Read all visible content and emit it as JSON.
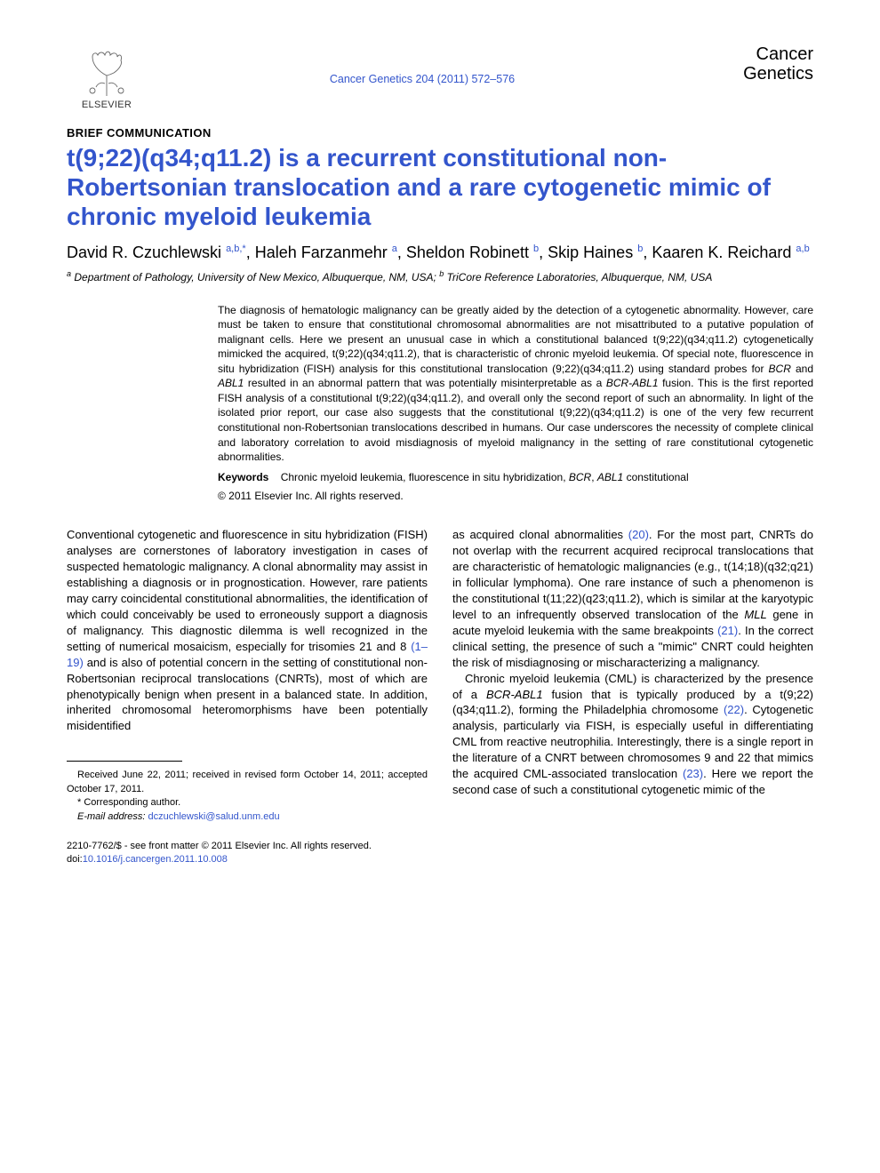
{
  "header": {
    "publisher_label": "ELSEVIER",
    "journal_ref": "Cancer Genetics 204 (2011) 572–576",
    "journal_title_line1": "Cancer",
    "journal_title_line2": "Genetics"
  },
  "article": {
    "section_label": "BRIEF COMMUNICATION",
    "title": "t(9;22)(q34;q11.2) is a recurrent constitutional non-Robertsonian translocation and a rare cytogenetic mimic of chronic myeloid leukemia",
    "authors_html": "David R. Czuchlewski <sup>a,b,*</sup>, Haleh Farzanmehr <sup>a</sup>, Sheldon Robinett <sup>b</sup>, Skip Haines <sup>b</sup>, Kaaren K. Reichard <sup>a,b</sup>",
    "affiliations_html": "<sup>a</sup> Department of Pathology, University of New Mexico, Albuquerque, NM, USA; <sup>b</sup> TriCore Reference Laboratories, Albuquerque, NM, USA"
  },
  "abstract": {
    "text_html": "The diagnosis of hematologic malignancy can be greatly aided by the detection of a cytogenetic abnormality. However, care must be taken to ensure that constitutional chromosomal abnormalities are not misattributed to a putative population of malignant cells. Here we present an unusual case in which a constitutional balanced t(9;22)(q34;q11.2) cytogenetically mimicked the acquired, t(9;22)(q34;q11.2), that is characteristic of chronic myeloid leukemia. Of special note, fluorescence in situ hybridization (FISH) analysis for this constitutional translocation (9;22)(q34;q11.2) using standard probes for <span class=\"ital\">BCR</span> and <span class=\"ital\">ABL1</span> resulted in an abnormal pattern that was potentially misinterpretable as a <span class=\"ital\">BCR-ABL1</span> fusion. This is the first reported FISH analysis of a constitutional t(9;22)(q34;q11.2), and overall only the second report of such an abnormality. In light of the isolated prior report, our case also suggests that the constitutional t(9;22)(q34;q11.2) is one of the very few recurrent constitutional non-Robertsonian translocations described in humans. Our case underscores the necessity of complete clinical and laboratory correlation to avoid misdiagnosis of myeloid malignancy in the setting of rare constitutional cytogenetic abnormalities.",
    "keywords_label": "Keywords",
    "keywords_html": "Chronic myeloid leukemia, fluorescence in situ hybridization, <span class=\"ital\">BCR</span>, <span class=\"ital\">ABL1</span> constitutional",
    "copyright": "© 2011 Elsevier Inc. All rights reserved."
  },
  "body": {
    "col1_html": "Conventional cytogenetic and fluorescence in situ hybridization (FISH) analyses are cornerstones of laboratory investigation in cases of suspected hematologic malignancy. A clonal abnormality may assist in establishing a diagnosis or in prognostication. However, rare patients may carry coincidental constitutional abnormalities, the identification of which could conceivably be used to erroneously support a diagnosis of malignancy. This diagnostic dilemma is well recognized in the setting of numerical mosaicism, especially for trisomies 21 and 8 <span class=\"reflink\">(1–19)</span> and is also of potential concern in the setting of constitutional non-Robertsonian reciprocal translocations (CNRTs), most of which are phenotypically benign when present in a balanced state. In addition, inherited chromosomal heteromorphisms have been potentially misidentified",
    "col2_p1_html": "as acquired clonal abnormalities <span class=\"reflink\">(20)</span>. For the most part, CNRTs do not overlap with the recurrent acquired reciprocal translocations that are characteristic of hematologic malignancies (e.g., t(14;18)(q32;q21) in follicular lymphoma). One rare instance of such a phenomenon is the constitutional t(11;22)(q23;q11.2), which is similar at the karyotypic level to an infrequently observed translocation of the <span class=\"ital\">MLL</span> gene in acute myeloid leukemia with the same breakpoints <span class=\"reflink\">(21)</span>. In the correct clinical setting, the presence of such a \"mimic\" CNRT could heighten the risk of misdiagnosing or mischaracterizing a malignancy.",
    "col2_p2_html": "Chronic myeloid leukemia (CML) is characterized by the presence of a <span class=\"ital\">BCR-ABL1</span> fusion that is typically produced by a t(9;22)(q34;q11.2), forming the Philadelphia chromosome <span class=\"reflink\">(22)</span>. Cytogenetic analysis, particularly via FISH, is especially useful in differentiating CML from reactive neutrophilia. Interestingly, there is a single report in the literature of a CNRT between chromosomes 9 and 22 that mimics the acquired CML-associated translocation <span class=\"reflink\">(23)</span>. Here we report the second case of such a constitutional cytogenetic mimic of the"
  },
  "footnotes": {
    "received": "Received June 22, 2011; received in revised form October 14, 2011; accepted October 17, 2011.",
    "corresponding": "* Corresponding author.",
    "email_label": "E-mail address:",
    "email": "dczuchlewski@salud.unm.edu"
  },
  "bottom": {
    "issn_line": "2210-7762/$ - see front matter © 2011 Elsevier Inc. All rights reserved.",
    "doi_prefix": "doi:",
    "doi": "10.1016/j.cancergen.2011.10.008"
  },
  "colors": {
    "link": "#3355cc",
    "text": "#000000",
    "background": "#ffffff"
  }
}
